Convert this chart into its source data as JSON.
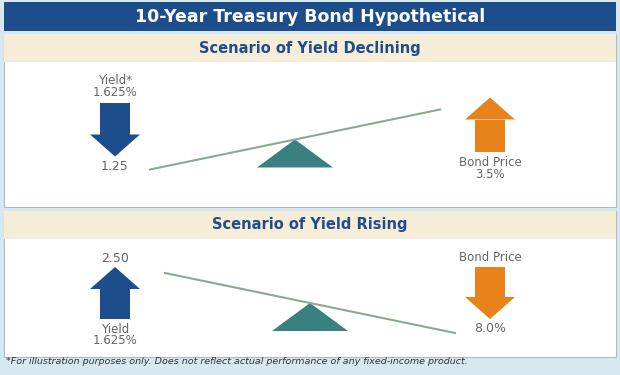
{
  "title": "10-Year Treasury Bond Hypothetical",
  "title_bg": "#1e4d8c",
  "title_color": "#ffffff",
  "scenario_bg": "#f5edd8",
  "panel_bg": "#ffffff",
  "outer_bg": "#d6e8f0",
  "border_color": "#b0b8c0",
  "scenario1_title": "Scenario of Yield Declining",
  "scenario2_title": "Scenario of Yield Rising",
  "scenario_title_color": "#1e4d8c",
  "blue_arrow_color": "#1e4d8c",
  "orange_arrow_color": "#e8821a",
  "teal_triangle_color": "#3a8080",
  "seesaw_line_color": "#8aaa90",
  "footnote": "*For illustration purposes only. Does not reflect actual performance of any fixed-income product.",
  "footnote_color": "#333333",
  "s1_yield_line1": "1.625%",
  "s1_yield_line2": "Yield*",
  "s1_yield_value": "1.25",
  "s1_bond_line1": "Bond Price",
  "s1_bond_line2": "3.5%",
  "s2_yield_top": "2.50",
  "s2_yield_line1": "Yield",
  "s2_yield_line2": "1.625%",
  "s2_bond_line1": "Bond Price",
  "s2_bond_line2": "8.0%",
  "text_color": "#666666"
}
